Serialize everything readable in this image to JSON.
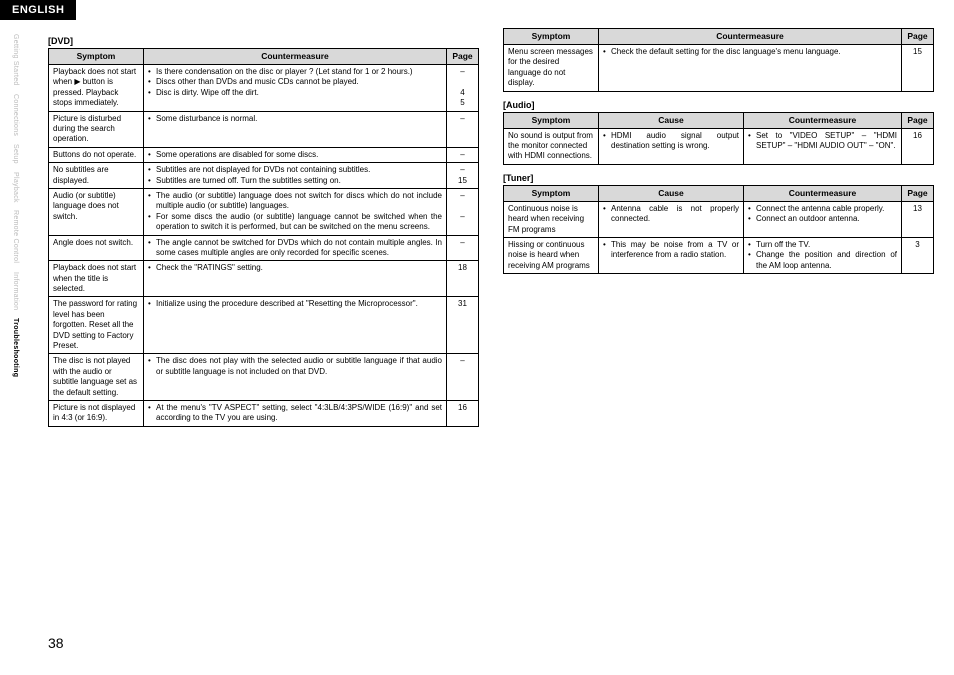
{
  "language_tab": "ENGLISH",
  "page_number": "38",
  "side_tabs": [
    {
      "label": "Getting Started",
      "active": false
    },
    {
      "label": "Connections",
      "active": false
    },
    {
      "label": "Setup",
      "active": false
    },
    {
      "label": "Playback",
      "active": false
    },
    {
      "label": "Remote Control",
      "active": false
    },
    {
      "label": "Information",
      "active": false
    },
    {
      "label": "Troubleshooting",
      "active": true
    }
  ],
  "sections": {
    "dvd": {
      "label": "[DVD]",
      "headers": [
        "Symptom",
        "Countermeasure",
        "Page"
      ],
      "rows": [
        {
          "symptom": "Playback does not start when ▶ button is pressed. Playback stops immediately.",
          "counter": [
            "Is there condensation on the disc or player ? (Let stand for 1 or 2 hours.)",
            "Discs other than DVDs and music CDs cannot be played.",
            "Disc is dirty. Wipe off the dirt."
          ],
          "pages": [
            "–",
            "",
            "4",
            "5"
          ]
        },
        {
          "symptom": "Picture is disturbed during the search operation.",
          "counter": [
            "Some disturbance is normal."
          ],
          "pages": [
            "–"
          ]
        },
        {
          "symptom": "Buttons do not operate.",
          "counter": [
            "Some operations are disabled for some discs."
          ],
          "pages": [
            "–"
          ]
        },
        {
          "symptom": "No subtitles are displayed.",
          "counter": [
            "Subtitles are not displayed for DVDs not containing subtitles.",
            "Subtitles are turned off. Turn the subtitles setting on."
          ],
          "pages": [
            "–",
            "15"
          ]
        },
        {
          "symptom": "Audio (or subtitle) language does not switch.",
          "counter": [
            "The audio (or subtitle) language does not switch for discs which do not include multiple audio (or subtitle) languages.",
            "For some discs the audio (or subtitle) language cannot be switched when the operation to switch it is performed, but can be switched on the menu screens."
          ],
          "pages": [
            "–",
            "",
            "–"
          ]
        },
        {
          "symptom": "Angle does not switch.",
          "counter": [
            "The angle cannot be switched for DVDs which do not contain multiple angles. In some cases multiple angles are only recorded for specific scenes."
          ],
          "pages": [
            "–"
          ]
        },
        {
          "symptom": "Playback does not start when the title is selected.",
          "counter": [
            "Check the \"RATINGS\" setting."
          ],
          "pages": [
            "18"
          ]
        },
        {
          "symptom": "The password for rating level has been forgotten. Reset all the DVD setting to Factory Preset.",
          "counter": [
            "Initialize using the procedure described at \"Resetting the Microprocessor\"."
          ],
          "pages": [
            "31"
          ]
        },
        {
          "symptom": "The disc is not played with the audio or subtitle language set as the default setting.",
          "counter": [
            "The disc does not play with the selected audio or subtitle language if that audio or subtitle language is not included on that DVD."
          ],
          "pages": [
            "–"
          ]
        },
        {
          "symptom": "Picture is not displayed in 4:3 (or 16:9).",
          "counter": [
            "At the menu's \"TV ASPECT\" setting, select \"4:3LB/4:3PS/WIDE (16:9)\" and set according to the TV you are using."
          ],
          "pages": [
            "16"
          ]
        }
      ]
    },
    "lang_menu": {
      "headers": [
        "Symptom",
        "Countermeasure",
        "Page"
      ],
      "rows": [
        {
          "symptom": "Menu screen messages for the desired language do not display.",
          "counter": [
            "Check the default setting for the disc language's menu language."
          ],
          "pages": [
            "15"
          ]
        }
      ]
    },
    "audio": {
      "label": "[Audio]",
      "headers": [
        "Symptom",
        "Cause",
        "Countermeasure",
        "Page"
      ],
      "rows": [
        {
          "symptom": "No sound is output from the monitor connected with HDMI connections.",
          "cause": [
            "HDMI audio signal output destination setting is wrong."
          ],
          "counter": [
            "Set to \"VIDEO SETUP\" – \"HDMI SETUP\" – \"HDMI AUDIO OUT\" – \"ON\"."
          ],
          "pages": [
            "16"
          ]
        }
      ]
    },
    "tuner": {
      "label": "[Tuner]",
      "headers": [
        "Symptom",
        "Cause",
        "Countermeasure",
        "Page"
      ],
      "rows": [
        {
          "symptom": "Continuous noise is heard when receiving FM programs",
          "cause": [
            "Antenna cable is not properly connected."
          ],
          "counter": [
            "Connect the antenna cable properly.",
            "Connect an outdoor antenna."
          ],
          "pages": [
            "13"
          ]
        },
        {
          "symptom": "Hissing or continuous noise is heard when receiving AM programs",
          "cause": [
            "This may be noise from a TV or interference from a radio station."
          ],
          "counter": [
            "Turn off the TV.",
            "Change the position and direction of the AM loop antenna."
          ],
          "pages": [
            "3"
          ]
        }
      ]
    }
  }
}
